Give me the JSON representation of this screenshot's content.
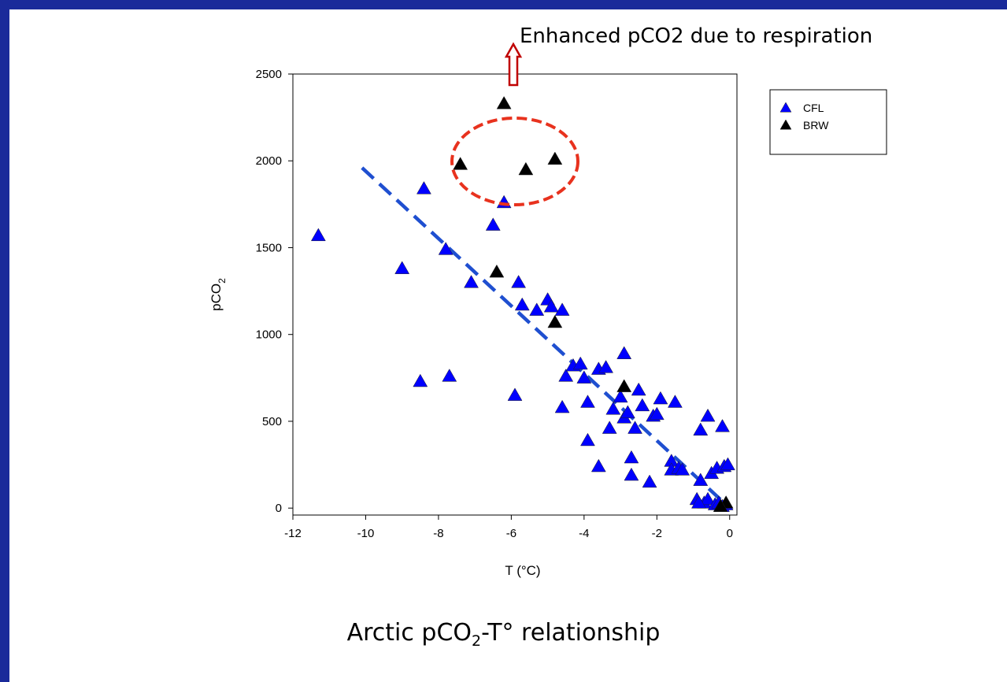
{
  "caption": {
    "prefix": "Arctic pCO",
    "sub": "2",
    "suffix": "-T° relationship"
  },
  "annotation": {
    "text": "Enhanced pCO2 due to respiration",
    "arrow_color": "#c00000",
    "circle_color": "#e8321e"
  },
  "chart_data": {
    "type": "scatter",
    "xlabel": "T (°C)",
    "ylabel_main": "pCO",
    "ylabel_sub": "2",
    "xlim": [
      -12,
      0.2
    ],
    "ylim": [
      -40,
      2500
    ],
    "xticks": [
      -12,
      -10,
      -8,
      -6,
      -4,
      -2,
      0
    ],
    "yticks": [
      0,
      500,
      1000,
      1500,
      2000,
      2500
    ],
    "legend_position": "upper-right",
    "series": [
      {
        "name": "CFL",
        "color": "#0000ff",
        "points": [
          [
            -11.3,
            1570
          ],
          [
            -9.0,
            1380
          ],
          [
            -8.4,
            1840
          ],
          [
            -8.5,
            730
          ],
          [
            -7.8,
            1490
          ],
          [
            -7.7,
            760
          ],
          [
            -7.1,
            1300
          ],
          [
            -6.5,
            1630
          ],
          [
            -6.2,
            1760
          ],
          [
            -5.9,
            650
          ],
          [
            -5.8,
            1300
          ],
          [
            -5.7,
            1170
          ],
          [
            -5.3,
            1140
          ],
          [
            -5.0,
            1200
          ],
          [
            -4.9,
            1160
          ],
          [
            -4.6,
            1140
          ],
          [
            -4.6,
            580
          ],
          [
            -4.5,
            760
          ],
          [
            -4.3,
            820
          ],
          [
            -4.1,
            830
          ],
          [
            -4.0,
            750
          ],
          [
            -3.9,
            610
          ],
          [
            -3.9,
            390
          ],
          [
            -3.6,
            800
          ],
          [
            -3.6,
            240
          ],
          [
            -3.4,
            810
          ],
          [
            -3.3,
            460
          ],
          [
            -3.2,
            570
          ],
          [
            -3.0,
            640
          ],
          [
            -2.9,
            890
          ],
          [
            -2.9,
            520
          ],
          [
            -2.8,
            550
          ],
          [
            -2.7,
            290
          ],
          [
            -2.7,
            190
          ],
          [
            -2.6,
            460
          ],
          [
            -2.5,
            680
          ],
          [
            -2.4,
            590
          ],
          [
            -2.2,
            150
          ],
          [
            -2.1,
            530
          ],
          [
            -2.0,
            540
          ],
          [
            -1.9,
            630
          ],
          [
            -1.5,
            610
          ],
          [
            -1.6,
            270
          ],
          [
            -1.6,
            220
          ],
          [
            -1.4,
            230
          ],
          [
            -1.3,
            220
          ],
          [
            -0.9,
            50
          ],
          [
            -0.8,
            160
          ],
          [
            -0.8,
            450
          ],
          [
            -0.7,
            30
          ],
          [
            -0.6,
            50
          ],
          [
            -0.6,
            530
          ],
          [
            -0.5,
            200
          ],
          [
            -0.4,
            20
          ],
          [
            -0.35,
            230
          ],
          [
            -0.3,
            30
          ],
          [
            -0.2,
            470
          ],
          [
            -0.15,
            240
          ],
          [
            -0.05,
            250
          ],
          [
            -0.1,
            20
          ],
          [
            -0.85,
            30
          ],
          [
            -0.2,
            10
          ]
        ]
      },
      {
        "name": "BRW",
        "color": "#000000",
        "points": [
          [
            -7.4,
            1980
          ],
          [
            -6.2,
            2330
          ],
          [
            -5.6,
            1950
          ],
          [
            -4.8,
            2010
          ],
          [
            -6.4,
            1360
          ],
          [
            -4.8,
            1070
          ],
          [
            -2.9,
            700
          ],
          [
            -0.1,
            30
          ],
          [
            -0.25,
            10
          ]
        ]
      }
    ],
    "trendline": {
      "from": [
        -10.1,
        1960
      ],
      "to": [
        -0.1,
        20
      ],
      "color": "#1f4fd0"
    }
  }
}
